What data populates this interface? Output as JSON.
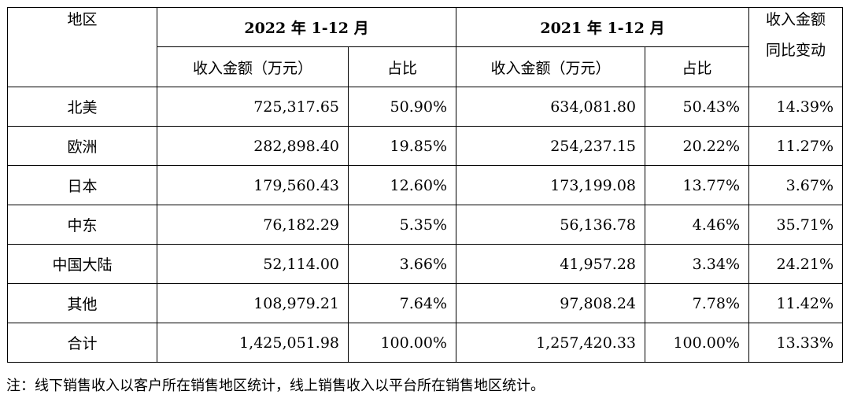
{
  "table": {
    "headers": {
      "region": "地区",
      "period_2022": "2022 年 1-12 月",
      "period_2021": "2021 年 1-12 月",
      "yoy_line1": "收入金额",
      "yoy_line2": "同比变动",
      "revenue": "收入金额（万元）",
      "share": "占比"
    },
    "rows": [
      {
        "region": "北美",
        "rev_2022": "725,317.65",
        "share_2022": "50.90%",
        "rev_2021": "634,081.80",
        "share_2021": "50.43%",
        "yoy": "14.39%"
      },
      {
        "region": "欧洲",
        "rev_2022": "282,898.40",
        "share_2022": "19.85%",
        "rev_2021": "254,237.15",
        "share_2021": "20.22%",
        "yoy": "11.27%"
      },
      {
        "region": "日本",
        "rev_2022": "179,560.43",
        "share_2022": "12.60%",
        "rev_2021": "173,199.08",
        "share_2021": "13.77%",
        "yoy": "3.67%"
      },
      {
        "region": "中东",
        "rev_2022": "76,182.29",
        "share_2022": "5.35%",
        "rev_2021": "56,136.78",
        "share_2021": "4.46%",
        "yoy": "35.71%"
      },
      {
        "region": "中国大陆",
        "rev_2022": "52,114.00",
        "share_2022": "3.66%",
        "rev_2021": "41,957.28",
        "share_2021": "3.34%",
        "yoy": "24.21%"
      },
      {
        "region": "其他",
        "rev_2022": "108,979.21",
        "share_2022": "7.64%",
        "rev_2021": "97,808.24",
        "share_2021": "7.78%",
        "yoy": "11.42%"
      },
      {
        "region": "合计",
        "rev_2022": "1,425,051.98",
        "share_2022": "100.00%",
        "rev_2021": "1,257,420.33",
        "share_2021": "100.00%",
        "yoy": "13.33%"
      }
    ]
  },
  "note": "注：线下销售收入以客户所在销售地区统计，线上销售收入以平台所在销售地区统计。"
}
